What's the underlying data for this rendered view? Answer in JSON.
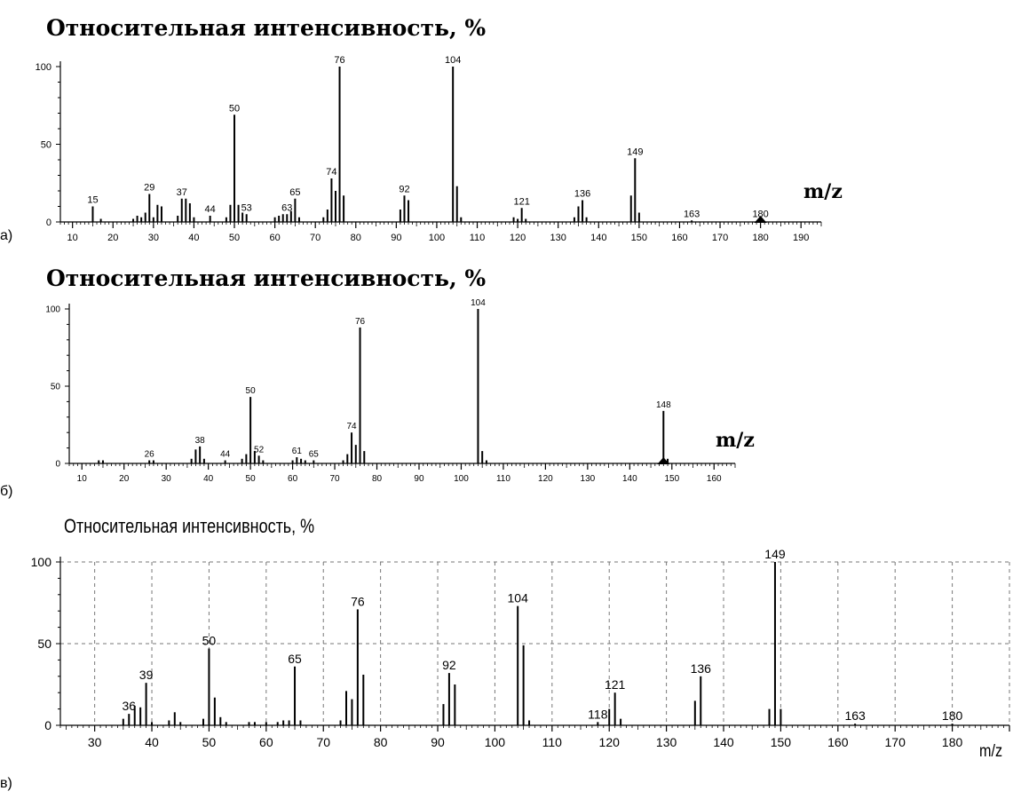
{
  "chart_data": [
    {
      "type": "bar",
      "panel_label": "а)",
      "title": "Относительная интенсивность, %",
      "xlabel": "m/z",
      "xlim": [
        7,
        195
      ],
      "ylim": [
        0,
        100
      ],
      "x_ticks": [
        10,
        20,
        30,
        40,
        50,
        60,
        70,
        80,
        90,
        100,
        110,
        120,
        130,
        140,
        150,
        160,
        170,
        180,
        190
      ],
      "y_ticks": [
        0,
        50,
        100
      ],
      "grid": false,
      "marker": 180,
      "peaks": [
        {
          "x": 15,
          "y": 10,
          "label": "15"
        },
        {
          "x": 17,
          "y": 2
        },
        {
          "x": 25,
          "y": 2
        },
        {
          "x": 26,
          "y": 4
        },
        {
          "x": 27,
          "y": 3
        },
        {
          "x": 28,
          "y": 6
        },
        {
          "x": 29,
          "y": 18,
          "label": "29"
        },
        {
          "x": 30,
          "y": 3
        },
        {
          "x": 31,
          "y": 11
        },
        {
          "x": 32,
          "y": 10
        },
        {
          "x": 36,
          "y": 4
        },
        {
          "x": 37,
          "y": 15,
          "label": "37"
        },
        {
          "x": 38,
          "y": 15
        },
        {
          "x": 39,
          "y": 12
        },
        {
          "x": 40,
          "y": 3
        },
        {
          "x": 44,
          "y": 4,
          "label": "44"
        },
        {
          "x": 48,
          "y": 3
        },
        {
          "x": 49,
          "y": 11
        },
        {
          "x": 50,
          "y": 69,
          "label": "50"
        },
        {
          "x": 51,
          "y": 11
        },
        {
          "x": 52,
          "y": 6
        },
        {
          "x": 53,
          "y": 5,
          "label": "53"
        },
        {
          "x": 60,
          "y": 3
        },
        {
          "x": 61,
          "y": 4
        },
        {
          "x": 62,
          "y": 5
        },
        {
          "x": 63,
          "y": 5,
          "label": "63"
        },
        {
          "x": 64,
          "y": 7
        },
        {
          "x": 65,
          "y": 15,
          "label": "65"
        },
        {
          "x": 66,
          "y": 3
        },
        {
          "x": 72,
          "y": 3
        },
        {
          "x": 73,
          "y": 8
        },
        {
          "x": 74,
          "y": 28,
          "label": "74"
        },
        {
          "x": 75,
          "y": 20
        },
        {
          "x": 76,
          "y": 100,
          "label": "76"
        },
        {
          "x": 77,
          "y": 17
        },
        {
          "x": 91,
          "y": 8
        },
        {
          "x": 92,
          "y": 17,
          "label": "92"
        },
        {
          "x": 93,
          "y": 14
        },
        {
          "x": 104,
          "y": 100,
          "label": "104"
        },
        {
          "x": 105,
          "y": 23
        },
        {
          "x": 106,
          "y": 3
        },
        {
          "x": 119,
          "y": 3
        },
        {
          "x": 120,
          "y": 2
        },
        {
          "x": 121,
          "y": 9,
          "label": "121"
        },
        {
          "x": 122,
          "y": 2
        },
        {
          "x": 134,
          "y": 3
        },
        {
          "x": 135,
          "y": 10
        },
        {
          "x": 136,
          "y": 14,
          "label": "136"
        },
        {
          "x": 137,
          "y": 3
        },
        {
          "x": 148,
          "y": 17
        },
        {
          "x": 149,
          "y": 41,
          "label": "149"
        },
        {
          "x": 150,
          "y": 6
        },
        {
          "x": 163,
          "y": 1,
          "label": "163"
        },
        {
          "x": 180,
          "y": 1,
          "label": "180"
        }
      ]
    },
    {
      "type": "bar",
      "panel_label": "б)",
      "title": "Относительная интенсивность, %",
      "xlabel": "m/z",
      "xlim": [
        7,
        165
      ],
      "ylim": [
        0,
        100
      ],
      "x_ticks": [
        10,
        20,
        30,
        40,
        50,
        60,
        70,
        80,
        90,
        100,
        110,
        120,
        130,
        140,
        150,
        160
      ],
      "y_ticks": [
        0,
        50,
        100
      ],
      "grid": false,
      "marker": 148,
      "peaks": [
        {
          "x": 14,
          "y": 2
        },
        {
          "x": 15,
          "y": 2
        },
        {
          "x": 26,
          "y": 2,
          "label": "26"
        },
        {
          "x": 27,
          "y": 2
        },
        {
          "x": 36,
          "y": 3
        },
        {
          "x": 37,
          "y": 9
        },
        {
          "x": 38,
          "y": 11,
          "label": "38"
        },
        {
          "x": 39,
          "y": 3
        },
        {
          "x": 44,
          "y": 2,
          "label": "44"
        },
        {
          "x": 48,
          "y": 3
        },
        {
          "x": 49,
          "y": 6
        },
        {
          "x": 50,
          "y": 43,
          "label": "50"
        },
        {
          "x": 51,
          "y": 8
        },
        {
          "x": 52,
          "y": 5,
          "label": "52"
        },
        {
          "x": 53,
          "y": 2
        },
        {
          "x": 60,
          "y": 2
        },
        {
          "x": 61,
          "y": 4,
          "label": "61"
        },
        {
          "x": 62,
          "y": 3
        },
        {
          "x": 63,
          "y": 2
        },
        {
          "x": 65,
          "y": 2,
          "label": "65"
        },
        {
          "x": 72,
          "y": 2
        },
        {
          "x": 73,
          "y": 6
        },
        {
          "x": 74,
          "y": 20,
          "label": "74"
        },
        {
          "x": 75,
          "y": 12
        },
        {
          "x": 76,
          "y": 88,
          "label": "76"
        },
        {
          "x": 77,
          "y": 8
        },
        {
          "x": 104,
          "y": 100,
          "label": "104"
        },
        {
          "x": 105,
          "y": 8
        },
        {
          "x": 106,
          "y": 2
        },
        {
          "x": 148,
          "y": 34,
          "label": "148"
        },
        {
          "x": 149,
          "y": 3
        }
      ]
    },
    {
      "type": "bar",
      "panel_label": "в)",
      "title": "Относительная  интенсивность, %",
      "xlabel": "m/z",
      "xlim": [
        24,
        190
      ],
      "ylim": [
        0,
        100
      ],
      "x_ticks": [
        30,
        40,
        50,
        60,
        70,
        80,
        90,
        100,
        110,
        120,
        130,
        140,
        150,
        160,
        170,
        180
      ],
      "y_ticks": [
        0,
        50,
        100
      ],
      "grid": true,
      "peaks": [
        {
          "x": 35,
          "y": 4
        },
        {
          "x": 36,
          "y": 7,
          "label": "36"
        },
        {
          "x": 37,
          "y": 12
        },
        {
          "x": 38,
          "y": 11
        },
        {
          "x": 39,
          "y": 26,
          "label": "39"
        },
        {
          "x": 40,
          "y": 2
        },
        {
          "x": 43,
          "y": 3
        },
        {
          "x": 44,
          "y": 8
        },
        {
          "x": 45,
          "y": 2
        },
        {
          "x": 49,
          "y": 4
        },
        {
          "x": 50,
          "y": 47,
          "label": "50"
        },
        {
          "x": 51,
          "y": 17
        },
        {
          "x": 52,
          "y": 5
        },
        {
          "x": 53,
          "y": 2
        },
        {
          "x": 57,
          "y": 2
        },
        {
          "x": 58,
          "y": 2
        },
        {
          "x": 60,
          "y": 2
        },
        {
          "x": 62,
          "y": 2
        },
        {
          "x": 63,
          "y": 3
        },
        {
          "x": 64,
          "y": 3
        },
        {
          "x": 65,
          "y": 36,
          "label": "65"
        },
        {
          "x": 66,
          "y": 3
        },
        {
          "x": 73,
          "y": 3
        },
        {
          "x": 74,
          "y": 21
        },
        {
          "x": 75,
          "y": 16
        },
        {
          "x": 76,
          "y": 71,
          "label": "76"
        },
        {
          "x": 77,
          "y": 31
        },
        {
          "x": 91,
          "y": 13
        },
        {
          "x": 92,
          "y": 32,
          "label": "92"
        },
        {
          "x": 93,
          "y": 25
        },
        {
          "x": 104,
          "y": 73,
          "label": "104"
        },
        {
          "x": 105,
          "y": 49
        },
        {
          "x": 106,
          "y": 3
        },
        {
          "x": 118,
          "y": 2,
          "label": "118"
        },
        {
          "x": 120,
          "y": 10
        },
        {
          "x": 121,
          "y": 20,
          "label": "121"
        },
        {
          "x": 122,
          "y": 4
        },
        {
          "x": 135,
          "y": 15
        },
        {
          "x": 136,
          "y": 30,
          "label": "136"
        },
        {
          "x": 148,
          "y": 10
        },
        {
          "x": 149,
          "y": 100,
          "label": "149"
        },
        {
          "x": 150,
          "y": 10
        },
        {
          "x": 163,
          "y": 1,
          "label": "163"
        },
        {
          "x": 180,
          "y": 1,
          "label": "180"
        }
      ]
    }
  ]
}
